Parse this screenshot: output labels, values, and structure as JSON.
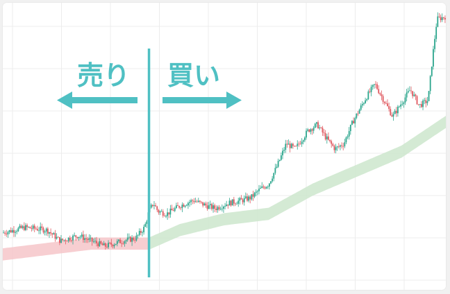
{
  "chart_data": {
    "type": "candlestick",
    "grid": true,
    "legend": "none",
    "colors": {
      "up": "#2aa58c",
      "down": "#e0575e",
      "band_below": "#f6c6c9",
      "band_above": "#cfe8cf",
      "accent": "#4fc0c3",
      "grid": "#ececec"
    },
    "y_range": [
      0,
      100
    ],
    "x_range": [
      0,
      100
    ],
    "annotations": {
      "divider_at": 33,
      "sell_label": "売り",
      "buy_label": "買い"
    },
    "price_path": [
      [
        0,
        17
      ],
      [
        5,
        19
      ],
      [
        10,
        18
      ],
      [
        13,
        14
      ],
      [
        17,
        16
      ],
      [
        20,
        14
      ],
      [
        23,
        12
      ],
      [
        27,
        14
      ],
      [
        30,
        15
      ],
      [
        32,
        19
      ],
      [
        33,
        25
      ],
      [
        34,
        28
      ],
      [
        35,
        25
      ],
      [
        37,
        24
      ],
      [
        40,
        27
      ],
      [
        43,
        29
      ],
      [
        46,
        27
      ],
      [
        48,
        26
      ],
      [
        51,
        28
      ],
      [
        54,
        29
      ],
      [
        56,
        30
      ],
      [
        58,
        33
      ],
      [
        60,
        35
      ],
      [
        62,
        42
      ],
      [
        64,
        50
      ],
      [
        66,
        48
      ],
      [
        69,
        55
      ],
      [
        71,
        57
      ],
      [
        73,
        52
      ],
      [
        75,
        48
      ],
      [
        77,
        50
      ],
      [
        79,
        58
      ],
      [
        82,
        67
      ],
      [
        84,
        72
      ],
      [
        86,
        66
      ],
      [
        88,
        60
      ],
      [
        90,
        65
      ],
      [
        92,
        70
      ],
      [
        94,
        64
      ],
      [
        96,
        66
      ],
      [
        97,
        82
      ],
      [
        98,
        96
      ],
      [
        100,
        97
      ]
    ],
    "band": [
      [
        0,
        9
      ],
      [
        10,
        11
      ],
      [
        20,
        13
      ],
      [
        33,
        13
      ],
      [
        40,
        18
      ],
      [
        50,
        22
      ],
      [
        60,
        24
      ],
      [
        70,
        33
      ],
      [
        80,
        40
      ],
      [
        90,
        47
      ],
      [
        100,
        58
      ]
    ],
    "band_width": 4.5
  }
}
